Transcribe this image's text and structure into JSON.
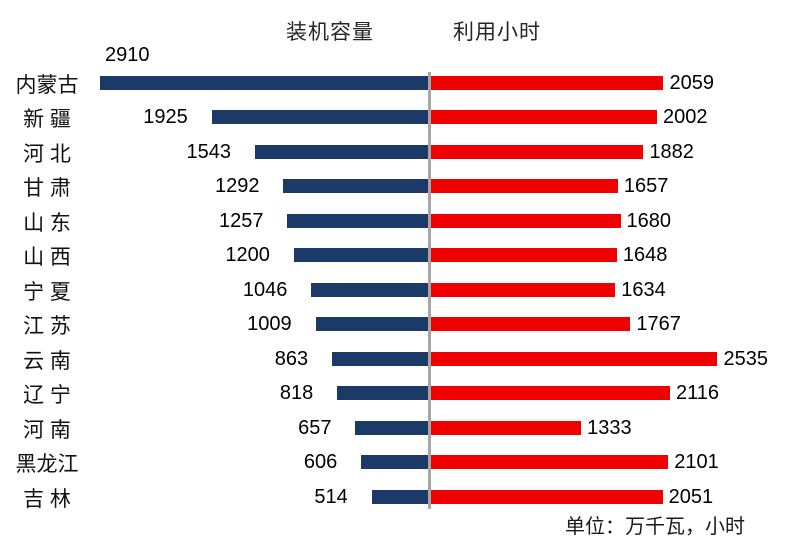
{
  "chart_data": {
    "type": "bar",
    "variant": "bidirectional-horizontal-tornado",
    "title": "",
    "unit_note": "单位：万千瓦，小时",
    "legend_position": "top-center-of-each-side",
    "grid": false,
    "center_axis_color": "#a6a6a6",
    "categories": [
      "内蒙古",
      "新 疆",
      "河 北",
      "甘 肃",
      "山 东",
      "山 西",
      "宁 夏",
      "江 苏",
      "云 南",
      "辽 宁",
      "河 南",
      "黑龙江",
      "吉 林"
    ],
    "series": [
      {
        "name": "装机容量",
        "side": "left",
        "color": "#1b3a68",
        "values": [
          2910,
          1925,
          1543,
          1292,
          1257,
          1200,
          1046,
          1009,
          863,
          818,
          657,
          606,
          514
        ]
      },
      {
        "name": "利用小时",
        "side": "right",
        "color": "#f00000",
        "values": [
          2059,
          2002,
          1882,
          1657,
          1680,
          1648,
          1634,
          1767,
          2535,
          2116,
          1333,
          2101,
          2051
        ]
      }
    ],
    "value_labels_shown": true,
    "axis_range_left": [
      0,
      2910
    ],
    "axis_range_right": [
      0,
      2535
    ]
  }
}
